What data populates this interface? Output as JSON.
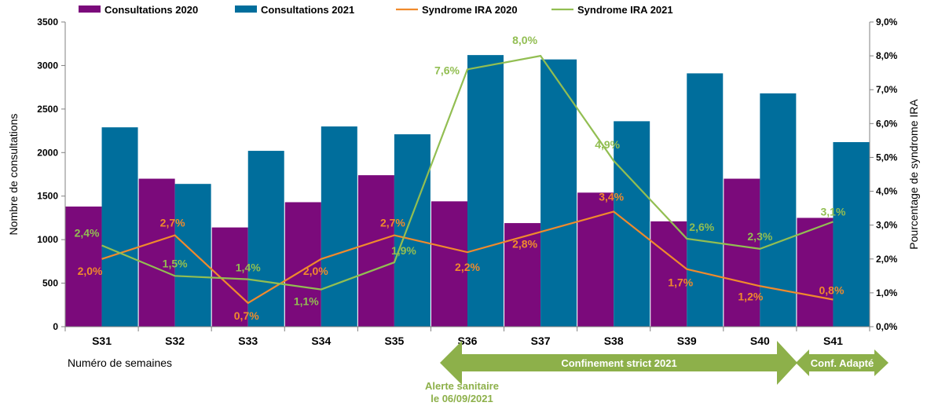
{
  "chart_data": {
    "type": "bar",
    "categories": [
      "S31",
      "S32",
      "S33",
      "S34",
      "S35",
      "S36",
      "S37",
      "S38",
      "S39",
      "S40",
      "S41"
    ],
    "series": [
      {
        "name": "Consultations 2020",
        "kind": "bar",
        "axis": "left",
        "color": "#7B0A7B",
        "values": [
          1380,
          1700,
          1140,
          1430,
          1740,
          1440,
          1190,
          1540,
          1210,
          1700,
          1250
        ]
      },
      {
        "name": "Consultations 2021",
        "kind": "bar",
        "axis": "left",
        "color": "#006E9C",
        "values": [
          2290,
          1640,
          2020,
          2300,
          2210,
          3120,
          3070,
          2360,
          2910,
          2680,
          2120
        ]
      },
      {
        "name": "Syndrome IRA 2020",
        "kind": "line",
        "axis": "right",
        "color": "#F08A2C",
        "values": [
          2.0,
          2.7,
          0.7,
          2.0,
          2.7,
          2.2,
          2.8,
          3.4,
          1.7,
          1.2,
          0.8
        ],
        "labels": [
          "2,0%",
          "2,7%",
          "0,7%",
          "2,0%",
          "2,7%",
          "2,2%",
          "2,8%",
          "3,4%",
          "1,7%",
          "1,2%",
          "0,8%"
        ]
      },
      {
        "name": "Syndrome IRA 2021",
        "kind": "line",
        "axis": "right",
        "color": "#92BE52",
        "values": [
          2.4,
          1.5,
          1.4,
          1.1,
          1.9,
          7.6,
          8.0,
          4.9,
          2.6,
          2.3,
          3.1
        ],
        "labels": [
          "2,4%",
          "1,5%",
          "1,4%",
          "1,1%",
          "1,9%",
          "7,6%",
          "8,0%",
          "4,9%",
          "2,6%",
          "2,3%",
          "3,1%"
        ]
      }
    ],
    "ylabel": "Nombre de consultations",
    "y2label": "Pourcentage de syndrome IRA",
    "xlabel": "Numéro de semaines",
    "ylim": [
      0,
      3500
    ],
    "y2lim": [
      0,
      9
    ],
    "yticks": [
      "0",
      "500",
      "1000",
      "1500",
      "2000",
      "2500",
      "3000",
      "3500"
    ],
    "y2ticks": [
      "0,0%",
      "1,0%",
      "2,0%",
      "3,0%",
      "4,0%",
      "5,0%",
      "6,0%",
      "7,0%",
      "8,0%",
      "9,0%"
    ],
    "legend_position": "top",
    "grid": false,
    "annotations": {
      "confinement_strict": "Confinement strict 2021",
      "conf_adapte": "Conf. Adapté",
      "alerte_line1": "Alerte sanitaire",
      "alerte_line2": "le 06/09/2021",
      "arrow_color": "#8DB04A",
      "alerte_color": "#8DB04A"
    }
  }
}
